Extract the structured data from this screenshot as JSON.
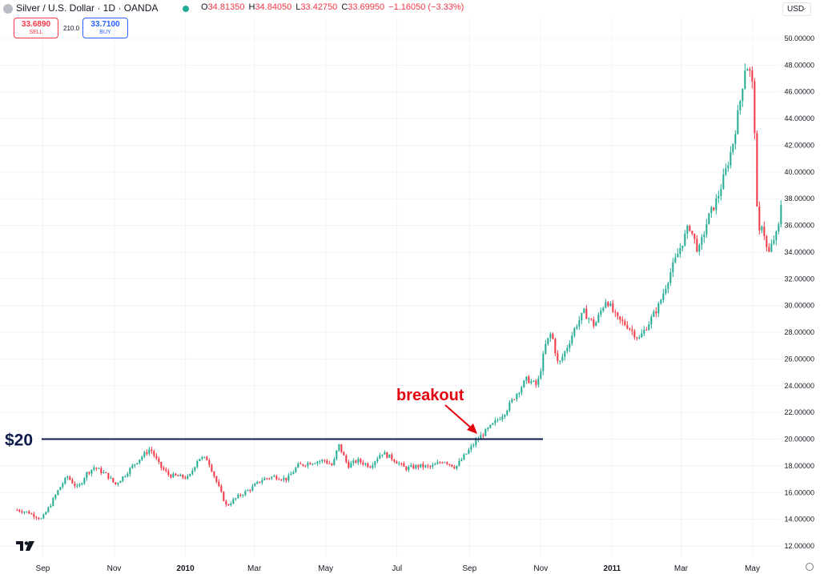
{
  "header": {
    "symbol_title": "Silver / U.S. Dollar · 1D · OANDA",
    "ohlc": [
      {
        "key": "O",
        "value": "34.81350"
      },
      {
        "key": "H",
        "value": "34.84050"
      },
      {
        "key": "L",
        "value": "33.42750"
      },
      {
        "key": "C",
        "value": "33.69950"
      },
      {
        "key": "",
        "value": "−1.16050 (−3.33%)"
      }
    ],
    "currency": "USD"
  },
  "trade": {
    "sell_price": "33.6890",
    "sell_label": "SELL",
    "spread": "210.0",
    "buy_price": "33.7100",
    "buy_label": "BUY"
  },
  "colors": {
    "up": "#22ab94",
    "down": "#f23645",
    "level_line": "#0d1b4a",
    "annotation": "#e3000f"
  },
  "chart_data": {
    "type": "line",
    "title": "",
    "xlabel": "",
    "ylabel": "",
    "ylim": [
      11.5,
      50.5
    ],
    "y_ticks": [
      "12.00000",
      "14.00000",
      "16.00000",
      "18.00000",
      "20.00000",
      "22.00000",
      "24.00000",
      "26.00000",
      "28.00000",
      "30.00000",
      "32.00000",
      "34.00000",
      "36.00000",
      "38.00000",
      "40.00000",
      "42.00000",
      "44.00000",
      "46.00000",
      "48.00000",
      "50.00000"
    ],
    "x_ticks": [
      {
        "label": "Sep",
        "bold": false
      },
      {
        "label": "Nov",
        "bold": false
      },
      {
        "label": "2010",
        "bold": true
      },
      {
        "label": "Mar",
        "bold": false
      },
      {
        "label": "May",
        "bold": false
      },
      {
        "label": "Jul",
        "bold": false
      },
      {
        "label": "Sep",
        "bold": false
      },
      {
        "label": "Nov",
        "bold": false
      },
      {
        "label": "2011",
        "bold": true
      },
      {
        "label": "Mar",
        "bold": false
      },
      {
        "label": "May",
        "bold": false
      }
    ],
    "series": [
      {
        "style": "candlestick (approx. closing path)",
        "points": [
          [
            "2009-08-10",
            14.7
          ],
          [
            "2009-08-20",
            14.5
          ],
          [
            "2009-08-31",
            14.0
          ],
          [
            "2009-09-07",
            15.0
          ],
          [
            "2009-09-15",
            16.3
          ],
          [
            "2009-09-22",
            17.2
          ],
          [
            "2009-10-01",
            16.3
          ],
          [
            "2009-10-08",
            17.4
          ],
          [
            "2009-10-15",
            17.9
          ],
          [
            "2009-10-26",
            17.3
          ],
          [
            "2009-11-02",
            16.6
          ],
          [
            "2009-11-10",
            17.3
          ],
          [
            "2009-11-20",
            18.3
          ],
          [
            "2009-12-02",
            19.3
          ],
          [
            "2009-12-10",
            18.0
          ],
          [
            "2009-12-18",
            17.3
          ],
          [
            "2010-01-04",
            17.1
          ],
          [
            "2010-01-12",
            18.6
          ],
          [
            "2010-01-20",
            18.5
          ],
          [
            "2010-01-29",
            16.5
          ],
          [
            "2010-02-05",
            15.0
          ],
          [
            "2010-02-15",
            15.7
          ],
          [
            "2010-02-26",
            16.3
          ],
          [
            "2010-03-08",
            17.0
          ],
          [
            "2010-03-18",
            17.2
          ],
          [
            "2010-03-29",
            17.0
          ],
          [
            "2010-04-07",
            18.0
          ],
          [
            "2010-04-20",
            18.3
          ],
          [
            "2010-04-30",
            18.4
          ],
          [
            "2010-05-07",
            18.0
          ],
          [
            "2010-05-12",
            19.6
          ],
          [
            "2010-05-20",
            18.0
          ],
          [
            "2010-05-28",
            18.4
          ],
          [
            "2010-06-08",
            18.0
          ],
          [
            "2010-06-18",
            19.0
          ],
          [
            "2010-06-28",
            18.5
          ],
          [
            "2010-07-08",
            17.8
          ],
          [
            "2010-07-20",
            18.0
          ],
          [
            "2010-07-30",
            17.9
          ],
          [
            "2010-08-10",
            18.4
          ],
          [
            "2010-08-20",
            17.9
          ],
          [
            "2010-08-30",
            19.0
          ],
          [
            "2010-09-08",
            20.0
          ],
          [
            "2010-09-20",
            21.0
          ],
          [
            "2010-10-01",
            22.0
          ],
          [
            "2010-10-12",
            23.5
          ],
          [
            "2010-10-20",
            24.5
          ],
          [
            "2010-10-29",
            24.0
          ],
          [
            "2010-11-05",
            27.0
          ],
          [
            "2010-11-10",
            28.0
          ],
          [
            "2010-11-16",
            25.5
          ],
          [
            "2010-11-24",
            27.0
          ],
          [
            "2010-12-01",
            28.5
          ],
          [
            "2010-12-08",
            29.5
          ],
          [
            "2010-12-17",
            28.5
          ],
          [
            "2010-12-27",
            30.5
          ],
          [
            "2011-01-05",
            29.0
          ],
          [
            "2011-01-14",
            28.5
          ],
          [
            "2011-01-24",
            27.5
          ],
          [
            "2011-01-31",
            28.5
          ],
          [
            "2011-02-10",
            30.0
          ],
          [
            "2011-02-20",
            32.5
          ],
          [
            "2011-03-01",
            34.5
          ],
          [
            "2011-03-08",
            36.0
          ],
          [
            "2011-03-16",
            34.0
          ],
          [
            "2011-03-24",
            36.5
          ],
          [
            "2011-04-01",
            38.0
          ],
          [
            "2011-04-08",
            40.0
          ],
          [
            "2011-04-14",
            42.0
          ],
          [
            "2011-04-20",
            45.0
          ],
          [
            "2011-04-25",
            48.0
          ],
          [
            "2011-04-28",
            47.8
          ],
          [
            "2011-05-02",
            46.0
          ],
          [
            "2011-05-05",
            37.0
          ],
          [
            "2011-05-06",
            35.0
          ],
          [
            "2011-05-10",
            36.5
          ],
          [
            "2011-05-12",
            34.5
          ],
          [
            "2011-05-16",
            33.8
          ],
          [
            "2011-05-18",
            34.8
          ],
          [
            "2011-05-23",
            35.5
          ],
          [
            "2011-05-26",
            38.0
          ]
        ]
      }
    ],
    "grid": true,
    "annotations": [
      {
        "text": "$20",
        "value": 20.0,
        "kind": "horizontal-level"
      },
      {
        "text": "breakout",
        "kind": "arrow-label"
      }
    ]
  }
}
